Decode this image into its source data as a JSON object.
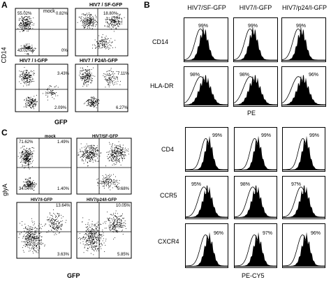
{
  "panelA": {
    "letter": "A",
    "ylabel": "CD14",
    "xlabel": "GFP",
    "plots": [
      {
        "title": "mock",
        "q": [
          "55.02%",
          "0.82%",
          "43.02%",
          "0%"
        ]
      },
      {
        "title": "HIV7 / SF-GFP",
        "q": [
          "",
          "18.80%",
          "",
          ""
        ]
      },
      {
        "title": "HIV7 / I-GFP",
        "q": [
          "",
          "3.43%",
          "",
          "2.09%"
        ]
      },
      {
        "title": "HIV7 / P24/I-GFP",
        "q": [
          "",
          "7.11%",
          "",
          "6.27%"
        ]
      }
    ]
  },
  "panelB": {
    "letter": "B",
    "columns": [
      "HIV7/SF-GFP",
      "HIV7/I-GFP",
      "HIV7/p24/I-GFP"
    ],
    "top": {
      "rows": [
        {
          "label": "CD14",
          "pcts": [
            "99%",
            "99%",
            "99%"
          ]
        },
        {
          "label": "HLA-DR",
          "pcts": [
            "98%",
            "98%",
            "96%"
          ]
        }
      ],
      "xlabel": "PE"
    },
    "bottom": {
      "rows": [
        {
          "label": "CD4",
          "pcts": [
            "99%",
            "99%",
            "99%"
          ]
        },
        {
          "label": "CCR5",
          "pcts": [
            "95%",
            "98%",
            "97%"
          ]
        },
        {
          "label": "CXCR4",
          "pcts": [
            "96%",
            "97%",
            "96%"
          ]
        }
      ],
      "xlabel": "PE-CY5"
    }
  },
  "panelC": {
    "letter": "C",
    "ylabel": "glyA",
    "xlabel": "GFP",
    "plots": [
      {
        "title": "mock",
        "q": [
          "71.62%",
          "1.49%",
          "34.04%",
          "1.40%"
        ]
      },
      {
        "title": "HIV7/SF-GFP",
        "q": [
          "",
          "",
          "",
          "5.68%"
        ]
      },
      {
        "title": "HIV7/I-GFP",
        "q": [
          "",
          "13.64%",
          "",
          "3.63%"
        ]
      },
      {
        "title": "HIV7/p24/I-GFP",
        "q": [
          "",
          "10.05%",
          "",
          "5.85%"
        ]
      }
    ]
  }
}
